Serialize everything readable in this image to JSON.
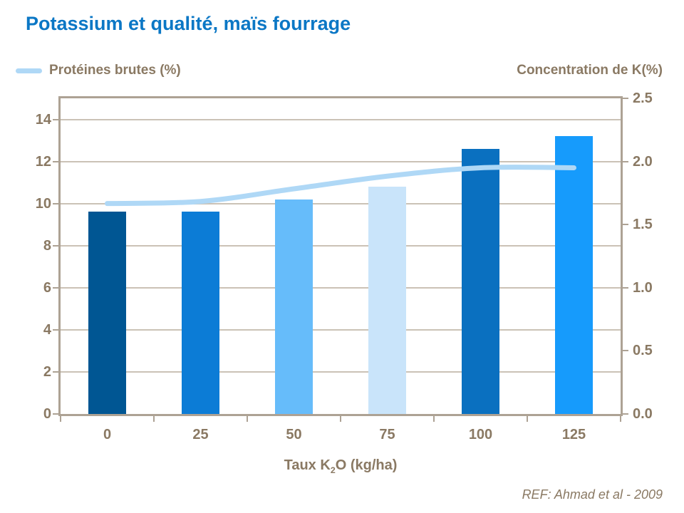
{
  "title": "Potassium et qualité, maïs fourrage",
  "footer": {
    "reference": "REF: Ahmad et al - 2009"
  },
  "colors": {
    "title": "#0B77C5",
    "text": "#8A7963",
    "axis": "#ADA294",
    "grid": "#CBC2B6",
    "background": "#FFFFFF"
  },
  "chart_data": {
    "type": "combo bar + line, dual y-axes",
    "categories": [
      "0",
      "25",
      "50",
      "75",
      "100",
      "125"
    ],
    "x_axis": {
      "title_prefix": "Taux K",
      "title_sub": "2",
      "title_suffix": "O (kg/ha)",
      "full_title": "Taux K2O (kg/ha)"
    },
    "left_axis": {
      "min": 0,
      "max": 15,
      "tick_labels": [
        "14",
        "12",
        "10",
        "8",
        "6",
        "4",
        "2",
        "0"
      ],
      "tick_values": [
        14,
        12,
        10,
        8,
        6,
        4,
        2,
        0
      ],
      "gridline_values": [
        14,
        12,
        10,
        8,
        6,
        4,
        2
      ]
    },
    "right_axis": {
      "title": "Concentration de K(%)",
      "min": 0,
      "max": 2.5,
      "tick_labels": [
        "2.5",
        "2.0",
        "1.5",
        "1.0",
        "0.5",
        "0.0"
      ],
      "tick_values": [
        2.5,
        2.0,
        1.5,
        1.0,
        0.5,
        0.0
      ]
    },
    "series": [
      {
        "name": "Concentration de K(%)",
        "type": "bar",
        "axis": "right",
        "values": [
          1.6,
          1.6,
          1.7,
          1.8,
          2.1,
          2.2
        ],
        "values_left_axis_equivalent": [
          9.6,
          9.6,
          10.2,
          10.8,
          12.6,
          13.2
        ],
        "colors": [
          "#005693",
          "#0C7CD6",
          "#66BCFA",
          "#C9E4FA",
          "#0A70C0",
          "#169BFC"
        ]
      },
      {
        "name": "Protéines brutes (%)",
        "type": "line",
        "axis": "left",
        "values": [
          10.0,
          10.1,
          10.7,
          11.3,
          11.7,
          11.7
        ],
        "values_right_axis_equivalent": [
          1.67,
          1.68,
          1.78,
          1.88,
          1.95,
          1.95
        ],
        "color": "#AFD8F6",
        "stroke_width": 7
      }
    ],
    "legend_position": "top-left",
    "grid": "horizontal only"
  }
}
